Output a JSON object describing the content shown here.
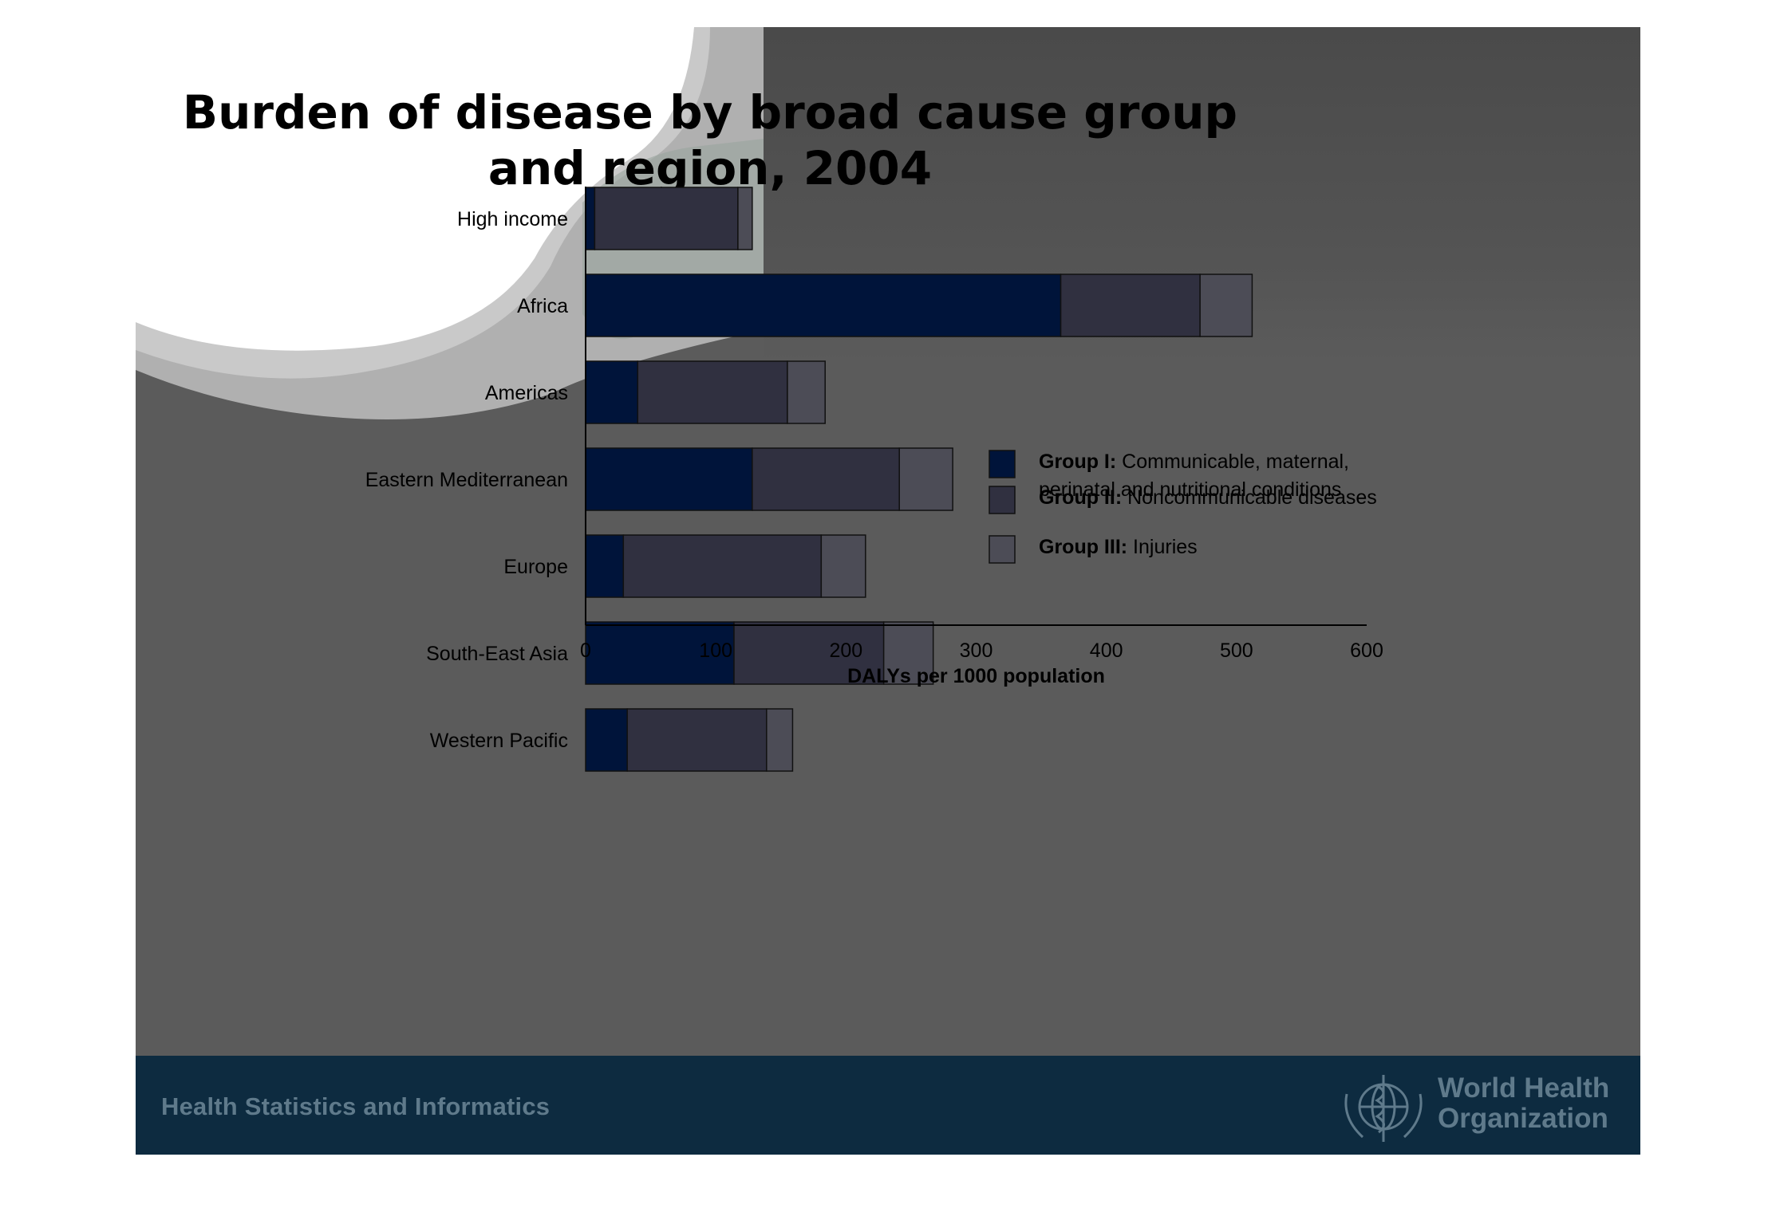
{
  "slide": {
    "title": "Burden of disease by broad cause group and region, 2004",
    "footer_text": "Health Statistics and Informatics",
    "logo": {
      "name_line1": "World Health",
      "name_line2": "Organization",
      "icon": "who-emblem-icon"
    }
  },
  "colors": {
    "group1": "#00143a",
    "group2": "#303040",
    "group3": "#4c4c56",
    "slide_bg": "#5b5b5b",
    "footer_bg": "#0d2b40"
  },
  "chart_data": {
    "type": "bar",
    "orientation": "horizontal",
    "stacked": true,
    "title": "Burden of disease by broad cause group and region, 2004",
    "xlabel": "DALYs per 1000 population",
    "ylabel": "",
    "xlim": [
      0,
      600
    ],
    "xticks": [
      0,
      100,
      200,
      300,
      400,
      500,
      600
    ],
    "categories": [
      "High income",
      "Africa",
      "Americas",
      "Eastern Mediterranean",
      "Europe",
      "South-East Asia",
      "Western Pacific"
    ],
    "series": [
      {
        "name": "Group I: Communicable, maternal, perinatal and nutritional conditions",
        "values": [
          7,
          365,
          40,
          128,
          29,
          114,
          32
        ]
      },
      {
        "name": "Group II: Noncommunicable diseases",
        "values": [
          110,
          107,
          115,
          113,
          152,
          115,
          107
        ]
      },
      {
        "name": "Group III: Injuries",
        "values": [
          11,
          40,
          29,
          41,
          34,
          38,
          20
        ]
      }
    ],
    "legend": {
      "position": "right",
      "entries": [
        {
          "bold": "Group I:",
          "rest_line1": " Communicable, maternal,",
          "rest_line2": "perinatal and nutritional conditions"
        },
        {
          "bold": "Group II:",
          "rest_line1": " Noncommunicable diseases",
          "rest_line2": ""
        },
        {
          "bold": "Group III:",
          "rest_line1": " Injuries",
          "rest_line2": ""
        }
      ]
    },
    "grid": false
  }
}
